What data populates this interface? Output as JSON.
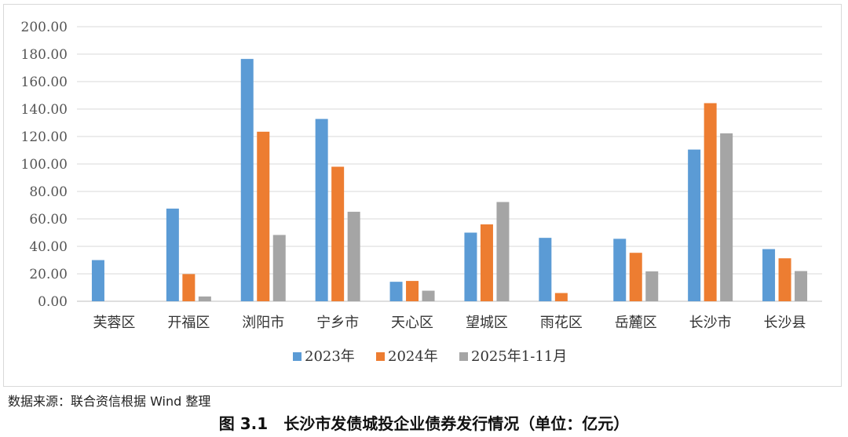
{
  "chart_data": {
    "type": "bar",
    "categories": [
      "芙蓉区",
      "开福区",
      "浏阳市",
      "宁乡市",
      "天心区",
      "望城区",
      "雨花区",
      "岳麓区",
      "长沙市",
      "长沙县"
    ],
    "series": [
      {
        "name": "2023年",
        "color": "#5b9bd5",
        "values": [
          30.0,
          67.5,
          176.5,
          132.8,
          14.2,
          50.0,
          46.2,
          45.5,
          110.5,
          38.0
        ]
      },
      {
        "name": "2024年",
        "color": "#ed7d31",
        "values": [
          0,
          19.8,
          123.5,
          98.0,
          14.8,
          56.0,
          6.0,
          35.3,
          144.3,
          31.3
        ]
      },
      {
        "name": "2025年1-11月",
        "color": "#a5a5a5",
        "values": [
          0,
          3.5,
          48.3,
          65.2,
          7.7,
          72.3,
          0,
          21.8,
          122.3,
          22.0
        ]
      }
    ],
    "yticks": [
      "0.00",
      "20.00",
      "40.00",
      "60.00",
      "80.00",
      "100.00",
      "120.00",
      "140.00",
      "160.00",
      "180.00",
      "200.00"
    ],
    "ylim": [
      0,
      200
    ],
    "grid": true,
    "legend_position": "bottom"
  },
  "source_note": "数据来源：联合资信根据 Wind 整理",
  "caption": "图 3.1　长沙市发债城投企业债券发行情况（单位：亿元）"
}
